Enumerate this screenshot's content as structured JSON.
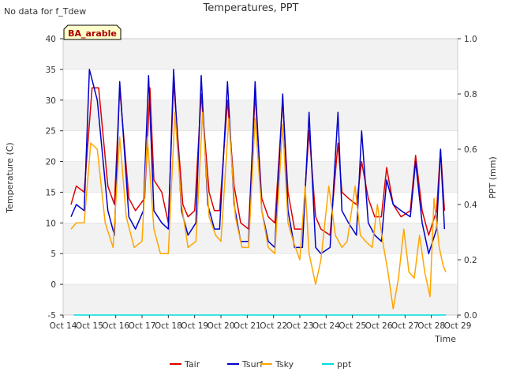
{
  "corner_note": "No data for f_Tdew",
  "chart_data": {
    "type": "line",
    "title": "Temperatures, PPT",
    "xlabel": "Time",
    "ylabel": "Temperature (C)",
    "ylabel_right": "PPT (mm)",
    "annotation": "BA_arable",
    "x_range": [
      14,
      29
    ],
    "ylim": [
      -5,
      40
    ],
    "ylim_right": [
      0.0,
      1.0
    ],
    "x_ticks": [
      {
        "v": 14,
        "label": "Oct 14"
      },
      {
        "v": 15,
        "label": "Oct 15"
      },
      {
        "v": 16,
        "label": "Oct 16"
      },
      {
        "v": 17,
        "label": "Oct 17"
      },
      {
        "v": 18,
        "label": "Oct 18"
      },
      {
        "v": 19,
        "label": "Oct 19"
      },
      {
        "v": 20,
        "label": "Oct 20"
      },
      {
        "v": 21,
        "label": "Oct 21"
      },
      {
        "v": 22,
        "label": "Oct 22"
      },
      {
        "v": 23,
        "label": "Oct 23"
      },
      {
        "v": 24,
        "label": "Oct 24"
      },
      {
        "v": 25,
        "label": "Oct 25"
      },
      {
        "v": 26,
        "label": "Oct 26"
      },
      {
        "v": 27,
        "label": "Oct 27"
      },
      {
        "v": 28,
        "label": "Oct 28"
      },
      {
        "v": 29,
        "label": "Oct 29"
      }
    ],
    "y_ticks": [
      {
        "v": -5,
        "label": "-5"
      },
      {
        "v": 0,
        "label": "0"
      },
      {
        "v": 5,
        "label": "5"
      },
      {
        "v": 10,
        "label": "10"
      },
      {
        "v": 15,
        "label": "15"
      },
      {
        "v": 20,
        "label": "20"
      },
      {
        "v": 25,
        "label": "25"
      },
      {
        "v": 30,
        "label": "30"
      },
      {
        "v": 35,
        "label": "35"
      },
      {
        "v": 40,
        "label": "40"
      }
    ],
    "y_ticks_right": [
      {
        "v": 0.0,
        "label": "0.0"
      },
      {
        "v": 0.2,
        "label": "0.2"
      },
      {
        "v": 0.4,
        "label": "0.4"
      },
      {
        "v": 0.6,
        "label": "0.6"
      },
      {
        "v": 0.8,
        "label": "0.8"
      },
      {
        "v": 1.0,
        "label": "1.0"
      }
    ],
    "series": [
      {
        "name": "Tair",
        "color": "#dd0000",
        "axis": "left",
        "x": [
          14.3,
          14.5,
          14.8,
          15.1,
          15.35,
          15.7,
          15.95,
          16.15,
          16.5,
          16.75,
          17.1,
          17.3,
          17.45,
          17.75,
          18.0,
          18.2,
          18.55,
          18.75,
          19.0,
          19.25,
          19.55,
          19.75,
          19.95,
          20.25,
          20.5,
          20.75,
          21.05,
          21.3,
          21.55,
          21.8,
          22.05,
          22.35,
          22.55,
          22.8,
          23.1,
          23.35,
          23.6,
          23.8,
          24.15,
          24.45,
          24.6,
          24.85,
          25.15,
          25.35,
          25.6,
          25.85,
          26.1,
          26.3,
          26.55,
          26.85,
          27.2,
          27.4,
          27.65,
          27.9,
          28.2,
          28.35,
          28.5
        ],
        "y": [
          13,
          16,
          15,
          32,
          32,
          16,
          13,
          32,
          14,
          12,
          14,
          32,
          17,
          15,
          10,
          33,
          13,
          11,
          12,
          31,
          15,
          12,
          12,
          30,
          16,
          10,
          9,
          31,
          14,
          11,
          10,
          30,
          15,
          9,
          9,
          25,
          11,
          9,
          8,
          23,
          15,
          14,
          13,
          20,
          14,
          11,
          11,
          19,
          13,
          11,
          12,
          21,
          12,
          8,
          12,
          22,
          12
        ]
      },
      {
        "name": "Tsurf",
        "color": "#0000cc",
        "axis": "left",
        "x": [
          14.3,
          14.5,
          14.8,
          15.0,
          15.3,
          15.7,
          15.95,
          16.15,
          16.5,
          16.75,
          17.05,
          17.25,
          17.45,
          17.75,
          18.0,
          18.2,
          18.5,
          18.75,
          19.05,
          19.25,
          19.5,
          19.75,
          19.95,
          20.25,
          20.5,
          20.75,
          21.05,
          21.3,
          21.55,
          21.8,
          22.05,
          22.35,
          22.55,
          22.8,
          23.1,
          23.35,
          23.6,
          23.8,
          24.15,
          24.45,
          24.6,
          24.85,
          25.15,
          25.35,
          25.6,
          25.85,
          26.1,
          26.3,
          26.55,
          26.85,
          27.2,
          27.4,
          27.65,
          27.9,
          28.2,
          28.35,
          28.5
        ],
        "y": [
          11,
          13,
          12,
          35,
          30,
          12,
          8,
          33,
          11,
          9,
          12,
          34,
          12,
          10,
          9,
          35,
          12,
          8,
          10,
          34,
          13,
          9,
          9,
          33,
          13,
          7,
          7,
          33,
          12,
          7,
          6,
          31,
          12,
          6,
          6,
          28,
          6,
          5,
          6,
          28,
          12,
          10,
          8,
          25,
          10,
          8,
          7,
          17,
          13,
          12,
          11,
          20,
          10,
          5,
          9,
          22,
          9
        ]
      },
      {
        "name": "Tsky",
        "color": "#ffa500",
        "axis": "left",
        "x": [
          14.3,
          14.5,
          14.8,
          15.05,
          15.3,
          15.6,
          15.9,
          16.15,
          16.4,
          16.7,
          17.0,
          17.2,
          17.45,
          17.7,
          18.0,
          18.25,
          18.5,
          18.75,
          19.05,
          19.3,
          19.55,
          19.8,
          20.0,
          20.3,
          20.55,
          20.8,
          21.05,
          21.3,
          21.55,
          21.8,
          22.05,
          22.35,
          22.55,
          22.75,
          23.0,
          23.2,
          23.35,
          23.6,
          23.8,
          24.1,
          24.35,
          24.6,
          24.8,
          25.1,
          25.3,
          25.5,
          25.75,
          25.95,
          26.15,
          26.35,
          26.55,
          26.75,
          26.95,
          27.15,
          27.35,
          27.55,
          27.75,
          27.95,
          28.1,
          28.3,
          28.45,
          28.55
        ],
        "y": [
          9,
          10,
          10,
          23,
          22,
          10,
          6,
          24,
          11,
          6,
          7,
          24,
          9,
          5,
          5,
          28,
          13,
          6,
          7,
          28,
          11,
          8,
          7,
          27,
          11,
          6,
          6,
          27,
          12,
          6,
          5,
          26,
          10,
          7,
          4,
          16,
          5,
          0,
          4,
          16,
          8,
          6,
          7,
          16,
          8,
          7,
          6,
          13,
          7,
          2,
          -4,
          1,
          9,
          2,
          1,
          8,
          2,
          -2,
          14,
          6,
          3,
          2
        ]
      },
      {
        "name": "ppt",
        "color": "#00dddd",
        "axis": "right",
        "x": [
          14.4,
          28.55
        ],
        "y": [
          0.0,
          0.0
        ]
      }
    ],
    "legend": "bottom-center"
  }
}
